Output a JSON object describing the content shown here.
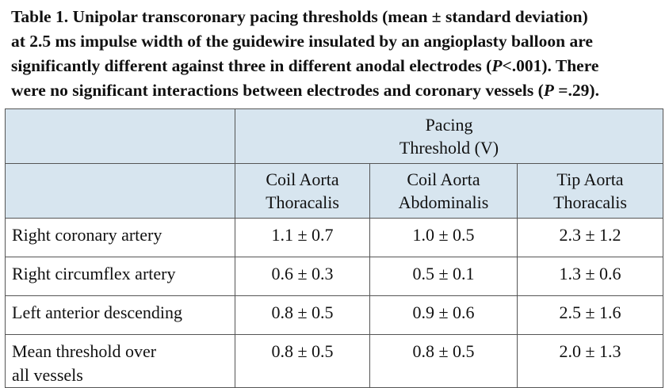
{
  "caption": [
    [
      "Table 1. Unipolar transcoronary pacing thresholds (mean ± standard deviation)"
    ],
    [
      "at 2.5 ms impulse width of the guidewire insulated by an angioplasty balloon are"
    ],
    [
      "significantly different against three in different anodal electrodes (",
      {
        "text": "P",
        "italic": true
      },
      "<.001). There"
    ],
    [
      "were no significant interactions between electrodes and coronary vessels (",
      {
        "text": "P",
        "italic": true
      },
      " =.29)."
    ]
  ],
  "table": {
    "group_header": [
      "Pacing",
      "Threshold (V)"
    ],
    "columns": [
      [
        "Coil Aorta",
        "Thoracalis"
      ],
      [
        "Coil Aorta",
        "Abdominalis"
      ],
      [
        "Tip Aorta",
        "Thoracalis"
      ]
    ],
    "rows": [
      [
        [
          "Right coronary artery"
        ],
        "1.1 ± 0.7",
        "1.0 ± 0.5",
        "2.3 ± 1.2"
      ],
      [
        [
          "Right circumflex artery"
        ],
        "0.6 ± 0.3",
        "0.5 ± 0.1",
        "1.3 ± 0.6"
      ],
      [
        [
          "Left anterior descending"
        ],
        "0.8 ± 0.5",
        "0.9 ± 0.6",
        "2.5 ± 1.6"
      ],
      [
        [
          "Mean threshold over",
          "all vessels"
        ],
        "0.8 ± 0.5",
        "0.8 ± 0.5",
        "2.0 ± 1.3"
      ]
    ]
  }
}
